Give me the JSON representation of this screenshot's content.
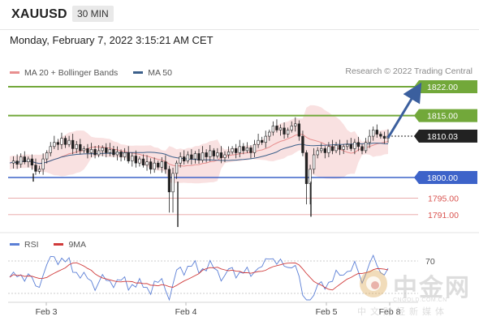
{
  "header": {
    "symbol": "XAUUSD",
    "timeframe": "30 MIN",
    "datetime": "Monday, February 7, 2022 3:15:21 AM CET"
  },
  "legend": {
    "ma20_label": "MA 20 + Bollinger Bands",
    "ma50_label": "MA 50",
    "copyright": "Research © 2022 Trading Central",
    "colors": {
      "ma20": "#e88f8f",
      "ma50": "#3b5f8a"
    }
  },
  "rsi_legend": {
    "rsi_label": "RSI",
    "ma_label": "9MA",
    "colors": {
      "rsi": "#5b7fd6",
      "ma": "#d03a3a"
    }
  },
  "watermark": {
    "name": "中金网",
    "url": "CNGOLD.COM.CN",
    "sub": "中文财经新媒体"
  },
  "chart_data": {
    "type": "candlestick",
    "title": "XAUUSD 30 MIN",
    "x_ticks": [
      "Feb 3",
      "Feb 4",
      "Feb 5",
      "Feb 8"
    ],
    "price_range": [
      1787,
      1827
    ],
    "levels": [
      {
        "label": "1822.00",
        "value": 1822.0,
        "kind": "resistance",
        "color": "#72a83a"
      },
      {
        "label": "1815.00",
        "value": 1815.0,
        "kind": "resistance",
        "color": "#72a83a"
      },
      {
        "label": "1810.03",
        "value": 1810.03,
        "kind": "last",
        "color": "#222222"
      },
      {
        "label": "1800.00",
        "value": 1800.0,
        "kind": "pivot",
        "color": "#3d63c9"
      },
      {
        "label": "1795.00",
        "value": 1795.0,
        "kind": "support",
        "color": "#d9534f"
      },
      {
        "label": "1791.00",
        "value": 1791.0,
        "kind": "support",
        "color": "#d9534f"
      }
    ],
    "rsi": {
      "level_label": "70",
      "level": 70
    },
    "price_path": [
      1803.5,
      1804.0,
      1803.2,
      1805.0,
      1803.8,
      1804.5,
      1803.0,
      1801.5,
      1802.0,
      1804.5,
      1806.0,
      1807.5,
      1808.5,
      1808.0,
      1809.5,
      1808.0,
      1809.0,
      1807.0,
      1808.0,
      1806.5,
      1807.0,
      1806.0,
      1806.8,
      1805.5,
      1806.5,
      1807.2,
      1806.0,
      1806.8,
      1805.5,
      1806.2,
      1805.0,
      1806.0,
      1804.0,
      1805.2,
      1803.5,
      1804.5,
      1803.0,
      1803.8,
      1802.0,
      1803.5,
      1802.5,
      1803.8,
      1802.0,
      1796.5,
      1801.0,
      1803.5,
      1805.0,
      1804.0,
      1805.5,
      1804.5,
      1805.8,
      1804.2,
      1806.0,
      1805.0,
      1806.5,
      1805.2,
      1806.0,
      1804.8,
      1805.5,
      1806.2,
      1807.0,
      1806.0,
      1807.5,
      1806.5,
      1807.2,
      1806.0,
      1808.0,
      1809.0,
      1808.5,
      1810.0,
      1811.0,
      1812.5,
      1811.5,
      1812.0,
      1810.5,
      1811.5,
      1812.5,
      1813.0,
      1810.0,
      1806.0,
      1798.5,
      1802.0,
      1805.5,
      1806.5,
      1807.0,
      1806.0,
      1807.5,
      1806.5,
      1807.8,
      1806.8,
      1807.5,
      1808.0,
      1807.0,
      1808.5,
      1807.5,
      1806.5,
      1808.5,
      1810.0,
      1811.5,
      1810.5,
      1810.0,
      1809.5,
      1810.03
    ],
    "annotation": "projected move toward 1822.00"
  }
}
